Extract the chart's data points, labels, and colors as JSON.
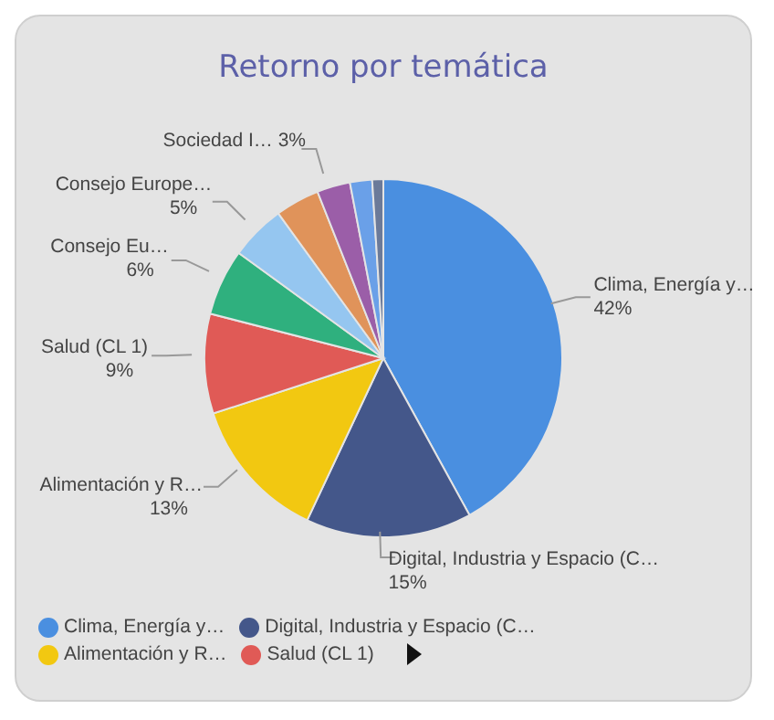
{
  "chart_data": {
    "type": "pie",
    "title": "Retorno por temática",
    "categories": [
      "Clima, Energía y…",
      "Digital, Industria y Espacio (C…",
      "Alimentación y R…",
      "Salud (CL 1)",
      "Consejo Eu…",
      "Consejo Europe…",
      null,
      "Sociedad I…",
      null,
      null
    ],
    "values": [
      42,
      15,
      13,
      9,
      6,
      5,
      4,
      3,
      2,
      1
    ],
    "colors": [
      "#4a8fe0",
      "#44578a",
      "#f2c811",
      "#e05a56",
      "#2fb07e",
      "#95c6f0",
      "#e0935a",
      "#9b5ea8",
      "#6aa0e8",
      "#6b7a99"
    ],
    "value_labels": [
      "42%",
      "15%",
      "13%",
      "9%",
      "6%",
      "5%",
      null,
      "3%",
      null,
      null
    ],
    "legend": "bottom"
  }
}
